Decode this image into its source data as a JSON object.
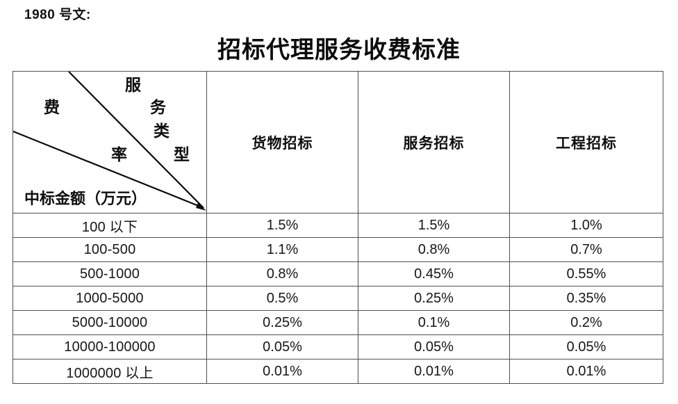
{
  "doc": {
    "ref_label": "1980 号文:",
    "title": "招标代理服务收费标准"
  },
  "table": {
    "corner": {
      "diag_upper": [
        "服",
        "务",
        "类",
        "型"
      ],
      "diag_mid": [
        "费",
        "率"
      ],
      "row_axis_label": "中标金额（万元）"
    },
    "columns": [
      "货物招标",
      "服务招标",
      "工程招标"
    ],
    "rows": [
      {
        "range": "100 以下",
        "values": [
          "1.5%",
          "1.5%",
          "1.0%"
        ]
      },
      {
        "range": "100-500",
        "values": [
          "1.1%",
          "0.8%",
          "0.7%"
        ]
      },
      {
        "range": "500-1000",
        "values": [
          "0.8%",
          "0.45%",
          "0.55%"
        ]
      },
      {
        "range": "1000-5000",
        "values": [
          "0.5%",
          "0.25%",
          "0.35%"
        ]
      },
      {
        "range": "5000-10000",
        "values": [
          "0.25%",
          "0.1%",
          "0.2%"
        ]
      },
      {
        "range": "10000-100000",
        "values": [
          "0.05%",
          "0.05%",
          "0.05%"
        ]
      },
      {
        "range": "1000000 以上",
        "values": [
          "0.01%",
          "0.01%",
          "0.01%"
        ]
      }
    ]
  },
  "colors": {
    "grid_line": "#4f4f4f",
    "diagonal_line": "#0a0a0a",
    "text": "#111111",
    "background": "#ffffff"
  }
}
